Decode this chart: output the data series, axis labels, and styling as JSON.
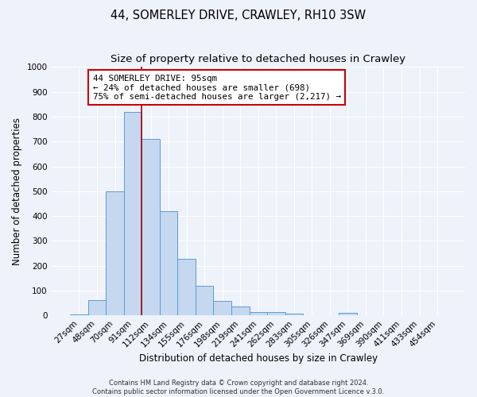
{
  "title": "44, SOMERLEY DRIVE, CRAWLEY, RH10 3SW",
  "subtitle": "Size of property relative to detached houses in Crawley",
  "xlabel": "Distribution of detached houses by size in Crawley",
  "ylabel": "Number of detached properties",
  "bar_labels": [
    "27sqm",
    "48sqm",
    "70sqm",
    "91sqm",
    "112sqm",
    "134sqm",
    "155sqm",
    "176sqm",
    "198sqm",
    "219sqm",
    "241sqm",
    "262sqm",
    "283sqm",
    "305sqm",
    "326sqm",
    "347sqm",
    "369sqm",
    "390sqm",
    "411sqm",
    "433sqm",
    "454sqm"
  ],
  "bar_values": [
    5,
    60,
    500,
    820,
    710,
    420,
    228,
    120,
    58,
    35,
    15,
    12,
    8,
    0,
    0,
    10,
    0,
    0,
    0,
    0,
    0
  ],
  "bar_color": "#c5d8f0",
  "bar_edge_color": "#5b9bd5",
  "background_color": "#eef2fa",
  "grid_color": "#ffffff",
  "vline_color": "#aa0000",
  "vline_index": 3,
  "ylim": [
    0,
    1000
  ],
  "yticks": [
    0,
    100,
    200,
    300,
    400,
    500,
    600,
    700,
    800,
    900,
    1000
  ],
  "annotation_title": "44 SOMERLEY DRIVE: 95sqm",
  "annotation_line1": "← 24% of detached houses are smaller (698)",
  "annotation_line2": "75% of semi-detached houses are larger (2,217) →",
  "annotation_box_color": "#ffffff",
  "annotation_box_edge": "#cc0000",
  "footer_line1": "Contains HM Land Registry data © Crown copyright and database right 2024.",
  "footer_line2": "Contains public sector information licensed under the Open Government Licence v.3.0.",
  "title_fontsize": 10.5,
  "subtitle_fontsize": 9.5,
  "axis_label_fontsize": 8.5,
  "tick_fontsize": 7.5,
  "annotation_fontsize": 7.8,
  "footer_fontsize": 6.0
}
